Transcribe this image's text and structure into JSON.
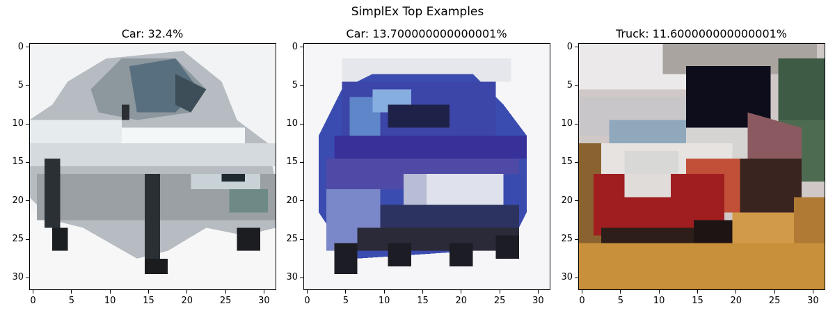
{
  "figure": {
    "suptitle": "SimplEx Top Examples"
  },
  "chart_data": [
    {
      "type": "heatmap",
      "title": "Car: 32.4%",
      "subject": "silver-car",
      "xlim": [
        -0.5,
        31.5
      ],
      "ylim": [
        31.5,
        -0.5
      ],
      "xticks": [
        "0",
        "5",
        "10",
        "15",
        "20",
        "25",
        "30"
      ],
      "yticks": [
        "0",
        "5",
        "10",
        "15",
        "20",
        "25",
        "30"
      ]
    },
    {
      "type": "heatmap",
      "title": "Car: 13.700000000000001%",
      "subject": "blue-car",
      "xlim": [
        -0.5,
        31.5
      ],
      "ylim": [
        31.5,
        -0.5
      ],
      "xticks": [
        "0",
        "5",
        "10",
        "15",
        "20",
        "25",
        "30"
      ],
      "yticks": [
        "0",
        "5",
        "10",
        "15",
        "20",
        "25",
        "30"
      ]
    },
    {
      "type": "heatmap",
      "title": "Truck: 11.600000000000001%",
      "subject": "red-dump-truck",
      "xlim": [
        -0.5,
        31.5
      ],
      "ylim": [
        31.5,
        -0.5
      ],
      "xticks": [
        "0",
        "5",
        "10",
        "15",
        "20",
        "25",
        "30"
      ],
      "yticks": [
        "0",
        "5",
        "10",
        "15",
        "20",
        "25",
        "30"
      ]
    }
  ]
}
